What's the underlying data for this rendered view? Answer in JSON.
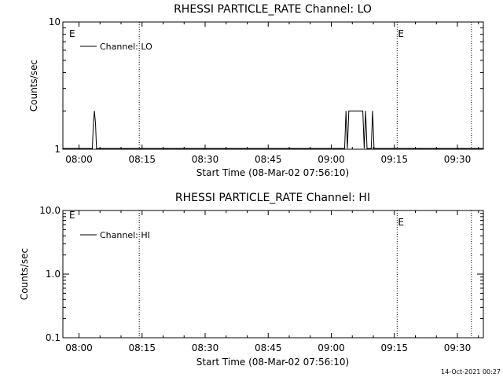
{
  "chart_data": [
    {
      "type": "line",
      "title": "RHESSI PARTICLE_RATE Channel: LO",
      "xlabel": "Start Time (08-Mar-02 07:56:10)",
      "ylabel": "Counts/sec",
      "y_scale": "log",
      "ylim": [
        1,
        10
      ],
      "y_ticks": [
        {
          "value": 1,
          "label": "1"
        },
        {
          "value": 10,
          "label": "10"
        }
      ],
      "xlim": [
        "07:56:10",
        "09:36:10"
      ],
      "x_ticks": [
        "08:00",
        "08:15",
        "08:30",
        "08:45",
        "09:00",
        "09:15",
        "09:30"
      ],
      "legend": {
        "placement": "top-left",
        "entries": [
          "Channel: LO"
        ]
      },
      "event_markers": [
        {
          "time": "08:14:20",
          "label": ""
        },
        {
          "time": "09:15:40",
          "label": "E"
        },
        {
          "time": "09:33:20",
          "label": ""
        }
      ],
      "edge_label": "E",
      "series": [
        {
          "name": "Channel: LO",
          "points": [
            [
              "07:56:10",
              1
            ],
            [
              "08:03:10",
              1
            ],
            [
              "08:03:25",
              1.6
            ],
            [
              "08:03:40",
              2
            ],
            [
              "08:03:55",
              1.6
            ],
            [
              "08:04:10",
              1
            ],
            [
              "09:03:10",
              1
            ],
            [
              "09:03:30",
              2
            ],
            [
              "09:03:50",
              1
            ],
            [
              "09:04:10",
              2
            ],
            [
              "09:07:30",
              2
            ],
            [
              "09:07:50",
              1
            ],
            [
              "09:08:10",
              2
            ],
            [
              "09:08:30",
              1
            ],
            [
              "09:09:30",
              1
            ],
            [
              "09:09:50",
              2
            ],
            [
              "09:10:10",
              1
            ],
            [
              "09:36:10",
              1
            ]
          ]
        }
      ]
    },
    {
      "type": "line",
      "title": "RHESSI PARTICLE_RATE Channel: HI",
      "xlabel": "Start Time (08-Mar-02 07:56:10)",
      "ylabel": "Counts/sec",
      "y_scale": "log",
      "ylim": [
        0.1,
        10
      ],
      "y_ticks": [
        {
          "value": 0.1,
          "label": "0.1"
        },
        {
          "value": 1,
          "label": "1.0"
        },
        {
          "value": 10,
          "label": "10.0"
        }
      ],
      "xlim": [
        "07:56:10",
        "09:36:10"
      ],
      "x_ticks": [
        "08:00",
        "08:15",
        "08:30",
        "08:45",
        "09:00",
        "09:15",
        "09:30"
      ],
      "legend": {
        "placement": "top-left",
        "entries": [
          "Channel: HI"
        ]
      },
      "event_markers": [
        {
          "time": "08:14:20",
          "label": ""
        },
        {
          "time": "09:15:40",
          "label": "E"
        },
        {
          "time": "09:33:20",
          "label": ""
        }
      ],
      "edge_label": "E",
      "series": [
        {
          "name": "Channel: HI",
          "points": []
        }
      ]
    }
  ],
  "footer": {
    "timestamp": "14-Oct-2021 00:27"
  }
}
